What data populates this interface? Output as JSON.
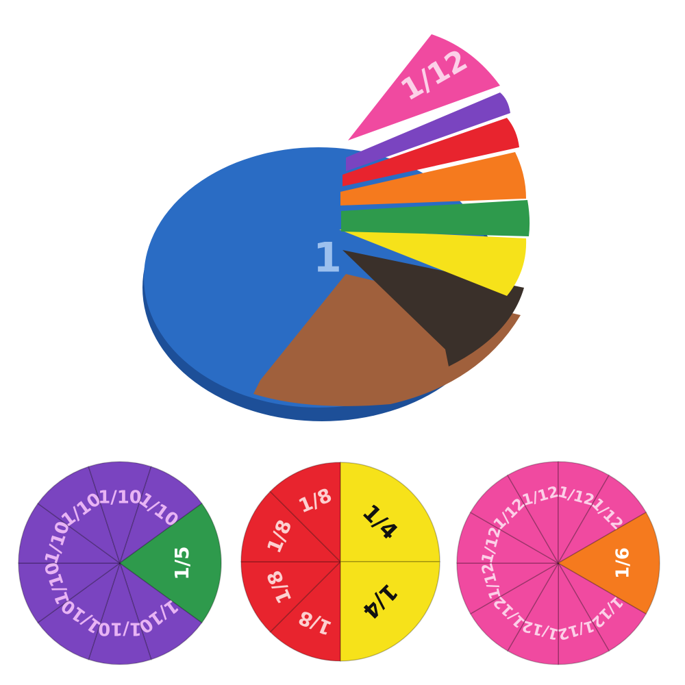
{
  "colors": {
    "blue": "#2a6cc4",
    "brown": "#a0603c",
    "black": "#3a302a",
    "yellow": "#f6e21a",
    "green": "#2e9a4c",
    "orange": "#f57a1e",
    "red": "#e8242e",
    "purple": "#7a44c0",
    "pink": "#f04aa0",
    "purple_text": "#e8b4f4",
    "pink_text": "#fcd0e8"
  },
  "stack": {
    "whole_label": "1",
    "top_piece_label": "1/12"
  },
  "tenths_circle": {
    "piece_label": "1/10",
    "fifth_label": "1/5"
  },
  "eighths_quarters_circle": {
    "eighth_label": "1/8",
    "quarter_label": "1/4"
  },
  "twelfths_circle": {
    "piece_label": "1/12",
    "sixth_label": "1/6"
  }
}
